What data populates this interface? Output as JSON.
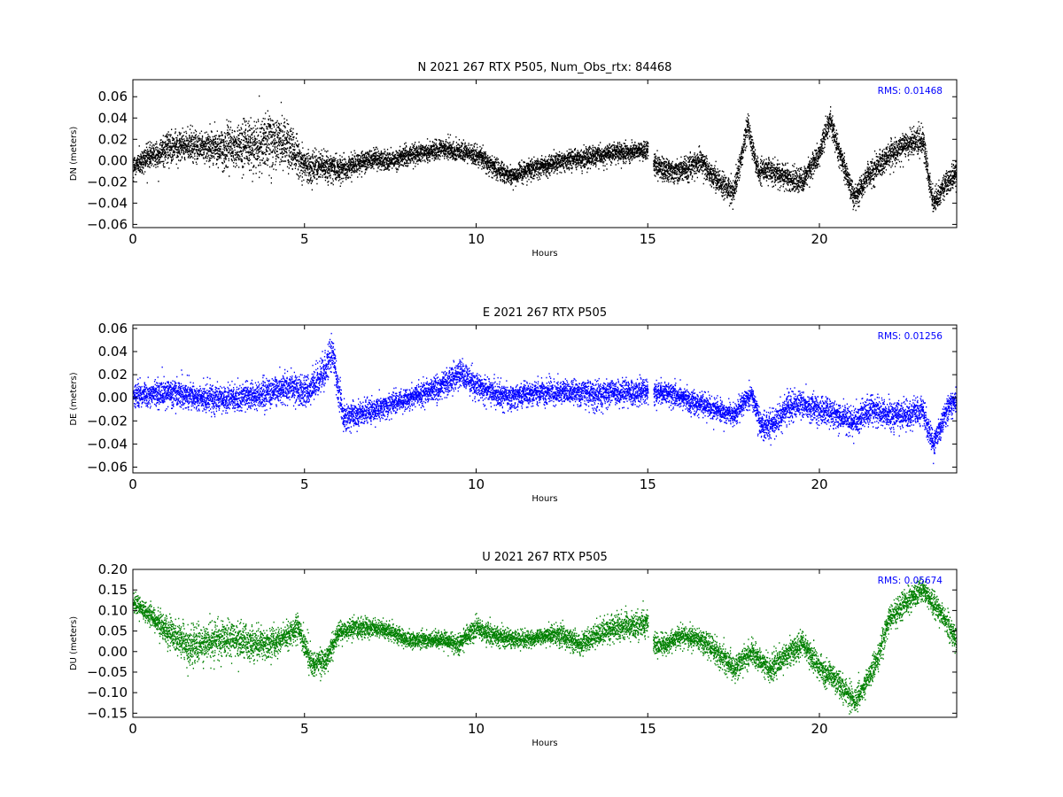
{
  "chart_data": [
    {
      "type": "scatter",
      "title": "N 2021 267 RTX  P505, Num_Obs_rtx: 84468",
      "xlabel": "Hours",
      "ylabel": "DN (meters)",
      "xlim": [
        0,
        24
      ],
      "ylim": [
        -0.063,
        0.076
      ],
      "xticks": [
        0,
        5,
        10,
        15,
        20
      ],
      "yticks": [
        -0.06,
        -0.04,
        -0.02,
        0.0,
        0.02,
        0.04,
        0.06
      ],
      "rms_label": "RMS:  0.01468",
      "rms_color": "#0000ff",
      "series_color": "#000000",
      "data_gap": [
        15.0,
        15.15
      ],
      "series": [
        {
          "x": [
            0,
            0.5,
            1,
            1.5,
            2,
            2.5,
            3,
            3.5,
            4,
            4.5,
            5,
            5.5,
            6,
            6.5,
            7,
            7.5,
            8,
            8.5,
            9,
            9.5,
            10,
            10.5,
            11,
            11.5,
            12,
            12.5,
            13,
            13.5,
            14,
            14.5,
            15,
            15.2,
            15.5,
            16,
            16.5,
            17,
            17.5,
            17.9,
            18.2,
            18.5,
            19,
            19.5,
            20,
            20.3,
            20.6,
            21,
            21.5,
            22,
            22.5,
            23,
            23.3,
            23.7,
            24
          ],
          "y": [
            -0.005,
            0.005,
            0.012,
            0.015,
            0.013,
            0.012,
            0.012,
            0.015,
            0.02,
            0.018,
            -0.005,
            -0.005,
            -0.008,
            -0.002,
            0.002,
            0.0,
            0.005,
            0.008,
            0.012,
            0.008,
            0.005,
            -0.005,
            -0.015,
            -0.008,
            -0.005,
            0.0,
            0.002,
            0.005,
            0.008,
            0.008,
            0.01,
            -0.005,
            -0.008,
            -0.01,
            0.0,
            -0.018,
            -0.03,
            0.035,
            -0.01,
            -0.008,
            -0.015,
            -0.02,
            0.01,
            0.04,
            0.005,
            -0.035,
            -0.01,
            0.005,
            0.015,
            0.02,
            -0.04,
            -0.02,
            -0.01
          ],
          "spread": [
            0.01,
            0.012,
            0.014,
            0.014,
            0.014,
            0.016,
            0.022,
            0.026,
            0.026,
            0.022,
            0.014,
            0.013,
            0.011,
            0.01,
            0.009,
            0.009,
            0.009,
            0.009,
            0.009,
            0.009,
            0.009,
            0.009,
            0.009,
            0.009,
            0.009,
            0.009,
            0.009,
            0.009,
            0.009,
            0.009,
            0.009,
            0.01,
            0.011,
            0.011,
            0.011,
            0.012,
            0.012,
            0.01,
            0.01,
            0.011,
            0.011,
            0.011,
            0.011,
            0.011,
            0.011,
            0.011,
            0.011,
            0.012,
            0.012,
            0.012,
            0.011,
            0.011,
            0.011
          ]
        }
      ]
    },
    {
      "type": "scatter",
      "title": "E 2021 267 RTX  P505",
      "xlabel": "Hours",
      "ylabel": "DE (meters)",
      "xlim": [
        0,
        24
      ],
      "ylim": [
        -0.065,
        0.063
      ],
      "xticks": [
        0,
        5,
        10,
        15,
        20
      ],
      "yticks": [
        -0.06,
        -0.04,
        -0.02,
        0.0,
        0.02,
        0.04,
        0.06
      ],
      "rms_label": "RMS:  0.01256",
      "rms_color": "#0000ff",
      "series_color": "#0000ff",
      "data_gap": [
        15.0,
        15.15
      ],
      "series": [
        {
          "x": [
            0,
            0.5,
            1,
            1.5,
            2,
            2.5,
            3,
            3.5,
            4,
            4.5,
            5,
            5.5,
            5.8,
            6.1,
            6.5,
            7,
            7.5,
            8,
            8.5,
            9,
            9.5,
            10,
            10.5,
            11,
            11.5,
            12,
            12.5,
            13,
            13.5,
            14,
            14.5,
            15,
            15.2,
            15.5,
            16,
            16.5,
            17,
            17.5,
            18,
            18.3,
            18.7,
            19,
            19.5,
            20,
            20.5,
            21,
            21.5,
            22,
            22.5,
            23,
            23.3,
            23.7,
            24
          ],
          "y": [
            0.002,
            0.005,
            0.005,
            0.003,
            0.0,
            0.0,
            0.0,
            0.002,
            0.005,
            0.01,
            0.005,
            0.02,
            0.04,
            -0.015,
            -0.015,
            -0.01,
            -0.005,
            0.0,
            0.005,
            0.01,
            0.022,
            0.01,
            0.005,
            0.0,
            0.005,
            0.005,
            0.005,
            0.005,
            0.003,
            0.005,
            0.005,
            0.005,
            0.005,
            0.005,
            0.0,
            -0.005,
            -0.01,
            -0.015,
            0.005,
            -0.025,
            -0.02,
            -0.01,
            -0.005,
            -0.01,
            -0.015,
            -0.02,
            -0.01,
            -0.015,
            -0.015,
            -0.01,
            -0.04,
            -0.01,
            0.0
          ],
          "spread": [
            0.01,
            0.011,
            0.012,
            0.011,
            0.011,
            0.011,
            0.011,
            0.011,
            0.012,
            0.012,
            0.013,
            0.014,
            0.016,
            0.013,
            0.011,
            0.01,
            0.009,
            0.009,
            0.01,
            0.011,
            0.012,
            0.011,
            0.01,
            0.01,
            0.01,
            0.01,
            0.01,
            0.011,
            0.011,
            0.011,
            0.011,
            0.01,
            0.01,
            0.01,
            0.009,
            0.009,
            0.009,
            0.009,
            0.01,
            0.011,
            0.011,
            0.012,
            0.012,
            0.012,
            0.012,
            0.012,
            0.012,
            0.012,
            0.012,
            0.012,
            0.012,
            0.011,
            0.01
          ]
        }
      ]
    },
    {
      "type": "scatter",
      "title": "U 2021 267 RTX  P505",
      "xlabel": "Hours",
      "ylabel": "DU (meters)",
      "xlim": [
        0,
        24
      ],
      "ylim": [
        -0.16,
        0.2
      ],
      "xticks": [
        0,
        5,
        10,
        15,
        20
      ],
      "yticks": [
        -0.15,
        -0.1,
        -0.05,
        0.0,
        0.05,
        0.1,
        0.15,
        0.2
      ],
      "rms_label": "RMS:  0.05674",
      "rms_color": "#0000ff",
      "series_color": "#008000",
      "data_gap": [
        15.0,
        15.15
      ],
      "series": [
        {
          "x": [
            0,
            0.5,
            1,
            1.5,
            2,
            2.5,
            3,
            3.5,
            4,
            4.5,
            4.8,
            5.2,
            5.6,
            6,
            6.5,
            7,
            7.5,
            8,
            8.5,
            9,
            9.5,
            10,
            10.5,
            11,
            11.5,
            12,
            12.5,
            13,
            13.5,
            14,
            14.5,
            15,
            15.2,
            15.5,
            16,
            16.5,
            17,
            17.5,
            18,
            18.5,
            19,
            19.5,
            20,
            20.5,
            21,
            21.3,
            21.7,
            22,
            22.5,
            23,
            23.5,
            24
          ],
          "y": [
            0.12,
            0.09,
            0.05,
            0.02,
            0.02,
            0.03,
            0.03,
            0.02,
            0.02,
            0.04,
            0.06,
            -0.03,
            -0.02,
            0.05,
            0.06,
            0.06,
            0.05,
            0.03,
            0.03,
            0.03,
            0.02,
            0.06,
            0.04,
            0.03,
            0.03,
            0.04,
            0.04,
            0.02,
            0.04,
            0.06,
            0.06,
            0.07,
            0.02,
            0.02,
            0.04,
            0.03,
            0.0,
            -0.04,
            0.0,
            -0.04,
            -0.01,
            0.02,
            -0.04,
            -0.07,
            -0.12,
            -0.08,
            -0.01,
            0.08,
            0.12,
            0.15,
            0.1,
            0.02
          ],
          "spread": [
            0.025,
            0.025,
            0.035,
            0.045,
            0.045,
            0.045,
            0.045,
            0.04,
            0.035,
            0.03,
            0.03,
            0.035,
            0.03,
            0.025,
            0.025,
            0.02,
            0.02,
            0.02,
            0.02,
            0.02,
            0.02,
            0.025,
            0.025,
            0.02,
            0.02,
            0.02,
            0.025,
            0.025,
            0.03,
            0.035,
            0.035,
            0.03,
            0.025,
            0.025,
            0.025,
            0.025,
            0.03,
            0.03,
            0.03,
            0.03,
            0.03,
            0.03,
            0.03,
            0.03,
            0.03,
            0.03,
            0.03,
            0.03,
            0.03,
            0.03,
            0.03,
            0.03
          ]
        }
      ]
    }
  ]
}
